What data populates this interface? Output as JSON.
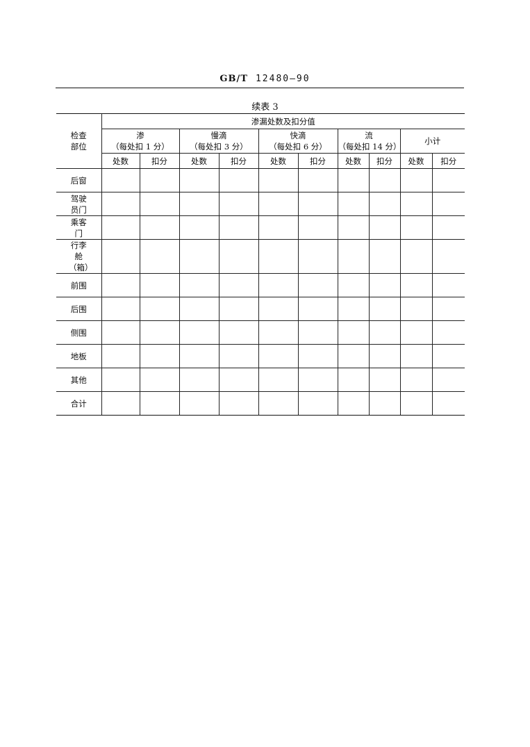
{
  "header": {
    "standard_prefix": "GB/T",
    "standard_number": "12480—90"
  },
  "caption": "续表 3",
  "table": {
    "row_header": "检查部位",
    "group_header": "渗漏处数及扣分值",
    "categories": [
      {
        "name": "渗",
        "note": "（每处扣 1 分）"
      },
      {
        "name": "慢滴",
        "note": "（每处扣 3 分）"
      },
      {
        "name": "快滴",
        "note": "（每处扣 6 分）"
      },
      {
        "name": "流",
        "note": "（每处扣 14 分）"
      },
      {
        "name": "小计",
        "note": ""
      }
    ],
    "sub_headers": [
      "处数",
      "扣分"
    ],
    "rows": [
      "后窗",
      "驾驶员门",
      "乘客门",
      "行李舱（箱）",
      "前围",
      "后围",
      "侧围",
      "地板",
      "其他",
      "合计"
    ]
  }
}
